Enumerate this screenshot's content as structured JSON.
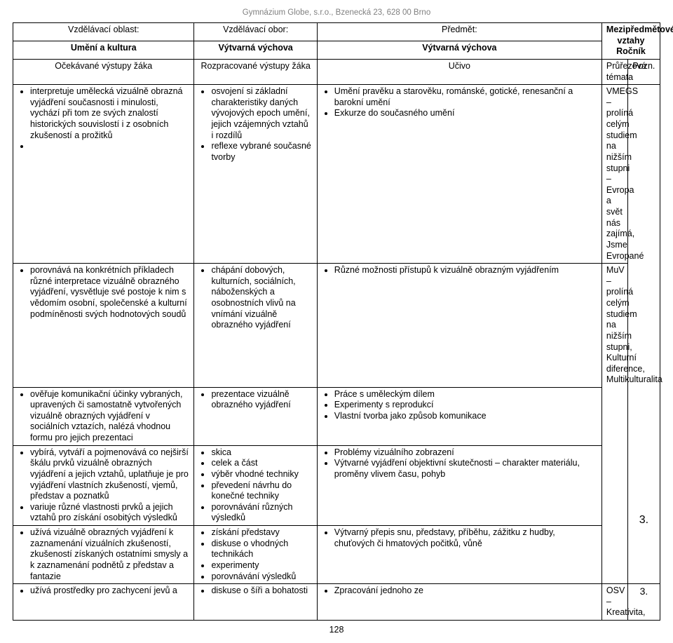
{
  "header": "Gymnázium Globe, s.r.o., Bzenecká 23, 628 00 Brno",
  "top_headers": {
    "r1c1": "Vzdělávací oblast:",
    "r1c2": "Vzdělávací obor:",
    "r1c3": "Předmět:",
    "r1c4": "Mezipředmětové vztahy Ročník",
    "r2c1": "Umění a kultura",
    "r2c2": "Výtvarná výchova",
    "r2c3": "Výtvarná výchova"
  },
  "sub_headers": {
    "c1": "Očekávané výstupy žáka",
    "c2": "Rozpracované výstupy žáka",
    "c3": "Učivo",
    "c4": "Průřezová témata",
    "c5": "Pozn."
  },
  "rows": [
    {
      "a": [
        "interpretuje umělecká vizuálně obrazná vyjádření současnosti i minulosti, vychází při tom ze svých znalostí historických souvislostí i z osobních zkušeností a prožitků",
        ""
      ],
      "b": [
        "osvojení si základní charakteristiky daných vývojových epoch umění, jejich vzájemných vztahů i rozdílů",
        "reflexe vybrané současné tvorby"
      ],
      "c": [
        "Umění pravěku a starověku, románské, gotické, renesanční a barokní umění",
        "Exkurze do současného umění"
      ],
      "d": "VMEGS – prolíná celým studiem na nižším stupni – Evropa a svět nás zajímá, Jsme Evropané",
      "e": ""
    },
    {
      "a": [
        "porovnává na konkrétních příkladech různé interpretace vizuálně obrazného vyjádření, vysvětluje své postoje k nim s vědomím osobní, společenské a kulturní podmíněnosti svých hodnotových soudů"
      ],
      "b": [
        "chápání dobových, kulturních, sociálních, náboženských a osobnostních vlivů na vnímání vizuálně obrazného vyjádření"
      ],
      "c": [
        "Různé možnosti přístupů k vizuálně obrazným vyjádřením"
      ],
      "d": "MuV – prolíná celým studiem na nižším stupni, Kulturní diference, Multikulturalita",
      "e": ""
    },
    {
      "a": [
        "ověřuje komunikační účinky vybraných, upravených či samostatně vytvořených vizuálně obrazných vyjádření v sociálních vztazích, nalézá vhodnou formu pro jejich prezentaci"
      ],
      "b": [
        "prezentace vizuálně obrazného vyjádření"
      ],
      "c": [
        "Práce s uměleckým dílem",
        "Experimenty s reprodukcí",
        "Vlastní tvorba jako způsob komunikace"
      ],
      "d": "",
      "e": ""
    },
    {
      "a": [
        "vybírá, vytváří a pojmenovává co nejširší škálu prvků vizuálně obrazných vyjádření a jejich vztahů, uplatňuje je pro vyjádření vlastních zkušeností, vjemů, představ a poznatků",
        "variuje různé vlastnosti prvků a jejich vztahů pro získání osobitých výsledků"
      ],
      "b": [
        "skica",
        "celek a část",
        "výběr vhodné techniky",
        "převedení návrhu do konečné techniky",
        "porovnávání různých výsledků"
      ],
      "c": [
        "Problémy vizuálního zobrazení",
        "Výtvarné vyjádření objektivní skutečnosti – charakter materiálu, proměny vlivem času, pohyb"
      ],
      "d": "",
      "e": "3."
    },
    {
      "a": [
        "užívá vizuálně obrazných vyjádření k zaznamenání vizuálních zkušeností, zkušeností získaných ostatními smysly a k zaznamenání podnětů z představ a fantazie"
      ],
      "b": [
        "získání představy",
        "diskuse o vhodných technikách",
        "experimenty",
        "porovnávání výsledků"
      ],
      "c": [
        "Výtvarný přepis snu, představy, příběhu, zážitku z hudby, chuťových či hmatových počitků, vůně"
      ],
      "d": "",
      "e": ""
    },
    {
      "a": [
        "užívá prostředky pro zachycení jevů a"
      ],
      "b": [
        "diskuse o šíři a bohatosti"
      ],
      "c": [
        "Zpracování jednoho ze"
      ],
      "d": "OSV – Kreativita,",
      "e": "3."
    }
  ],
  "page_number": "128"
}
